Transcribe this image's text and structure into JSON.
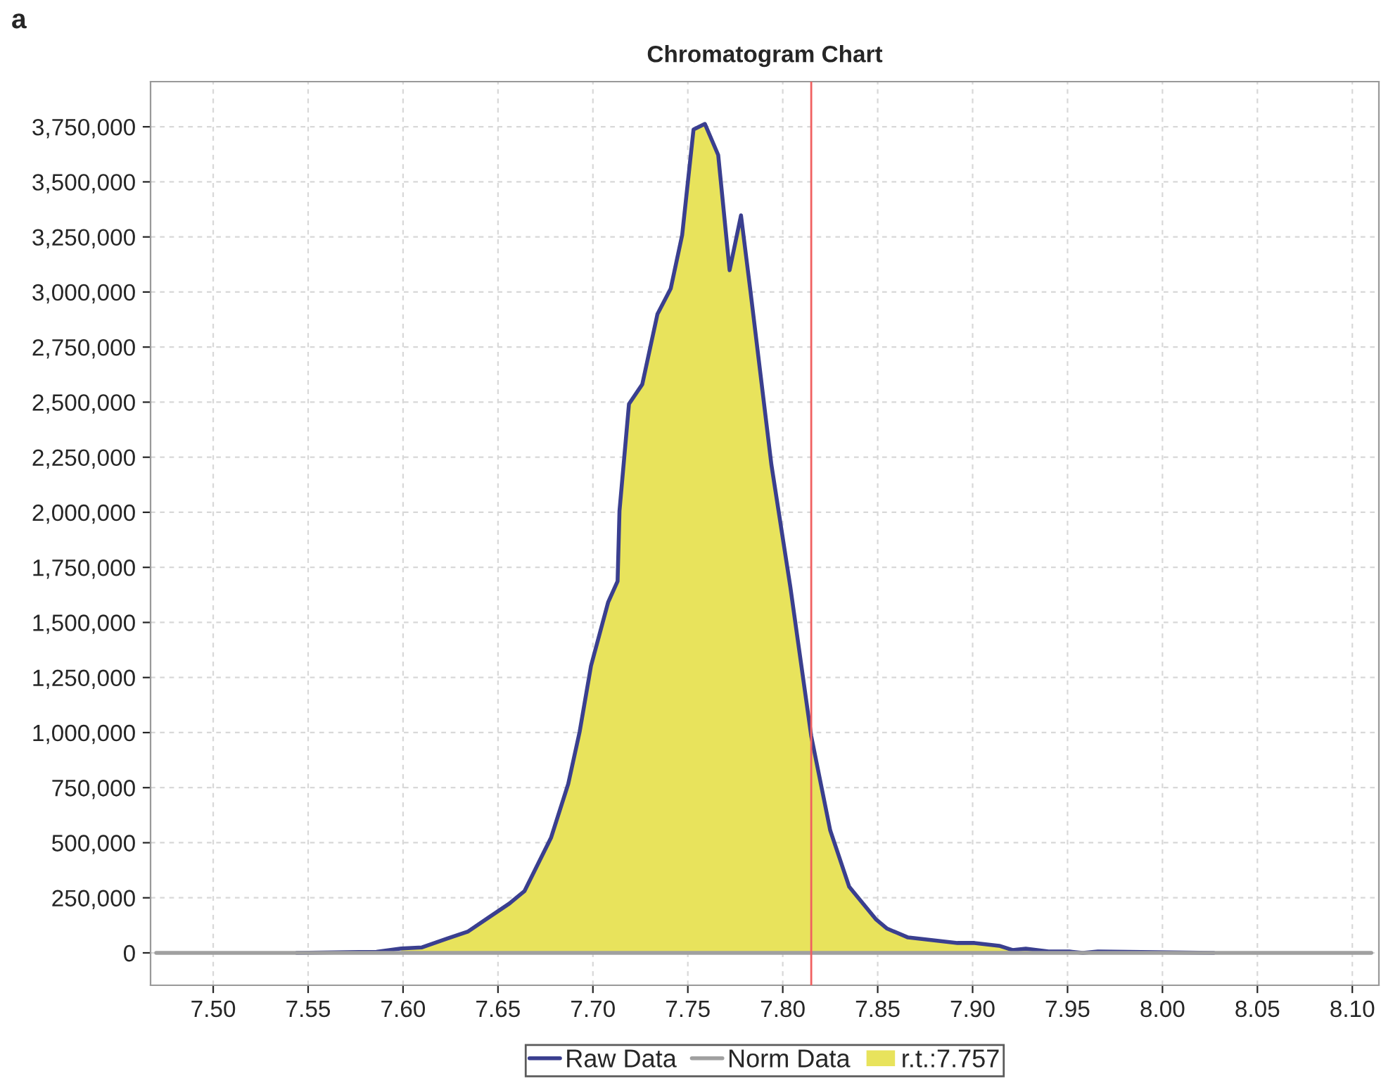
{
  "chart_data": {
    "type": "line",
    "title": "Chromatogram Chart",
    "annotations": [
      "a"
    ],
    "series": [
      {
        "name": "r.t.:7.757",
        "type": "area",
        "color": "#e8e35c",
        "x": [
          7.599,
          7.61,
          7.623,
          7.634,
          7.645,
          7.656,
          7.664,
          7.678,
          7.687,
          7.693,
          7.699,
          7.708,
          7.713,
          7.714,
          7.719,
          7.726,
          7.734,
          7.741,
          7.747,
          7.753,
          7.759,
          7.766,
          7.772,
          7.778,
          7.783,
          7.794,
          7.804,
          7.815,
          7.825,
          7.835,
          7.849,
          7.855,
          7.866,
          7.892,
          7.901,
          7.914,
          7.921,
          7.928,
          7.94
        ],
        "values": [
          20000,
          25000,
          64000,
          96000,
          160000,
          224000,
          281000,
          524000,
          767000,
          1003000,
          1303000,
          1591000,
          1687000,
          2006000,
          2492000,
          2581000,
          2900000,
          3016000,
          3258000,
          3738000,
          3763000,
          3622000,
          3099000,
          3348000,
          3003000,
          2217000,
          1661000,
          984000,
          556000,
          300000,
          153000,
          110000,
          70000,
          45000,
          45000,
          32000,
          13000,
          19000,
          6000
        ]
      },
      {
        "name": "Raw Data",
        "color": "#3a3f8f",
        "x": [
          7.544,
          7.586,
          7.599,
          7.61,
          7.623,
          7.634,
          7.645,
          7.656,
          7.664,
          7.678,
          7.687,
          7.693,
          7.699,
          7.708,
          7.713,
          7.714,
          7.719,
          7.726,
          7.734,
          7.741,
          7.747,
          7.753,
          7.759,
          7.766,
          7.772,
          7.778,
          7.783,
          7.794,
          7.804,
          7.815,
          7.825,
          7.835,
          7.849,
          7.855,
          7.866,
          7.892,
          7.901,
          7.914,
          7.921,
          7.928,
          7.94,
          7.951,
          7.958,
          7.966,
          8.027
        ],
        "values": [
          0,
          5000,
          20000,
          25000,
          64000,
          96000,
          160000,
          224000,
          281000,
          524000,
          767000,
          1003000,
          1303000,
          1591000,
          1687000,
          2006000,
          2492000,
          2581000,
          2900000,
          3016000,
          3258000,
          3738000,
          3763000,
          3622000,
          3099000,
          3348000,
          3003000,
          2217000,
          1661000,
          984000,
          556000,
          300000,
          153000,
          110000,
          70000,
          45000,
          45000,
          32000,
          13000,
          19000,
          6000,
          6000,
          0,
          6000,
          0
        ]
      },
      {
        "name": "Norm Data",
        "color": "#a0a0a0",
        "x": [
          7.47,
          8.11
        ],
        "values": [
          0,
          0
        ]
      }
    ],
    "ref_lines": [
      {
        "axis": "x",
        "value": 7.815,
        "color": "#f06060"
      }
    ],
    "xlim": [
      7.467,
      8.114
    ],
    "ylim": [
      -147000,
      3955000
    ],
    "xticks": [
      {
        "value": 7.5,
        "label": "7.50"
      },
      {
        "value": 7.55,
        "label": "7.55"
      },
      {
        "value": 7.6,
        "label": "7.60"
      },
      {
        "value": 7.65,
        "label": "7.65"
      },
      {
        "value": 7.7,
        "label": "7.70"
      },
      {
        "value": 7.75,
        "label": "7.75"
      },
      {
        "value": 7.8,
        "label": "7.80"
      },
      {
        "value": 7.85,
        "label": "7.85"
      },
      {
        "value": 7.9,
        "label": "7.90"
      },
      {
        "value": 7.95,
        "label": "7.95"
      },
      {
        "value": 8.0,
        "label": "8.00"
      },
      {
        "value": 8.05,
        "label": "8.05"
      },
      {
        "value": 8.1,
        "label": "8.10"
      }
    ],
    "yticks": [
      {
        "value": 0,
        "label": "0"
      },
      {
        "value": 250000,
        "label": "250,000"
      },
      {
        "value": 500000,
        "label": "500,000"
      },
      {
        "value": 750000,
        "label": "750,000"
      },
      {
        "value": 1000000,
        "label": "1,000,000"
      },
      {
        "value": 1250000,
        "label": "1,250,000"
      },
      {
        "value": 1500000,
        "label": "1,500,000"
      },
      {
        "value": 1750000,
        "label": "1,750,000"
      },
      {
        "value": 2000000,
        "label": "2,000,000"
      },
      {
        "value": 2250000,
        "label": "2,250,000"
      },
      {
        "value": 2500000,
        "label": "2,500,000"
      },
      {
        "value": 2750000,
        "label": "2,750,000"
      },
      {
        "value": 3000000,
        "label": "3,000,000"
      },
      {
        "value": 3250000,
        "label": "3,250,000"
      },
      {
        "value": 3500000,
        "label": "3,500,000"
      },
      {
        "value": 3750000,
        "label": "3,750,000"
      }
    ],
    "grid": true,
    "legend": "bottom"
  }
}
